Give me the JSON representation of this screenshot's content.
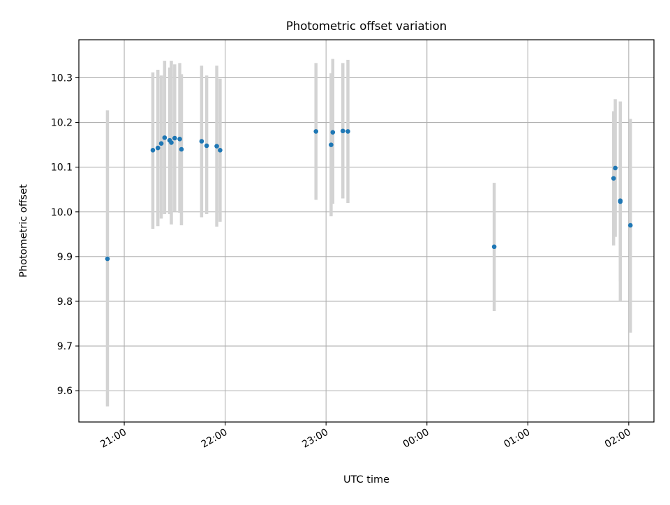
{
  "chart_data": {
    "type": "scatter",
    "title": "Photometric offset variation",
    "xlabel": "UTC time",
    "ylabel": "Photometric offset",
    "xlim": [
      "20:33",
      "02:15"
    ],
    "ylim": [
      9.53,
      10.385
    ],
    "x_ticks": [
      "21:00",
      "22:00",
      "23:00",
      "00:00",
      "01:00",
      "02:00"
    ],
    "y_ticks": [
      9.6,
      9.7,
      9.8,
      9.9,
      10.0,
      10.1,
      10.2,
      10.3
    ],
    "grid": true,
    "colors": {
      "marker": "#1f77b4",
      "errorbar": "#d3d3d3",
      "grid": "#b0b0b0"
    },
    "points": [
      {
        "x": "20:50",
        "y": 9.895,
        "lo": 9.565,
        "hi": 10.227
      },
      {
        "x": "21:17",
        "y": 10.138,
        "lo": 9.962,
        "hi": 10.312
      },
      {
        "x": "21:20",
        "y": 10.143,
        "lo": 9.968,
        "hi": 10.318
      },
      {
        "x": "21:22",
        "y": 10.153,
        "lo": 9.985,
        "hi": 10.305
      },
      {
        "x": "21:24",
        "y": 10.166,
        "lo": 9.995,
        "hi": 10.338
      },
      {
        "x": "21:27",
        "y": 10.16,
        "lo": 9.995,
        "hi": 10.323
      },
      {
        "x": "21:28",
        "y": 10.155,
        "lo": 9.972,
        "hi": 10.338
      },
      {
        "x": "21:30",
        "y": 10.165,
        "lo": 10.0,
        "hi": 10.33
      },
      {
        "x": "21:33",
        "y": 10.163,
        "lo": 9.998,
        "hi": 10.333
      },
      {
        "x": "21:34",
        "y": 10.14,
        "lo": 9.97,
        "hi": 10.308
      },
      {
        "x": "21:46",
        "y": 10.158,
        "lo": 9.988,
        "hi": 10.327
      },
      {
        "x": "21:49",
        "y": 10.148,
        "lo": 9.995,
        "hi": 10.305
      },
      {
        "x": "21:55",
        "y": 10.147,
        "lo": 9.967,
        "hi": 10.327
      },
      {
        "x": "21:57",
        "y": 10.138,
        "lo": 9.978,
        "hi": 10.298
      },
      {
        "x": "22:54",
        "y": 10.18,
        "lo": 10.027,
        "hi": 10.333
      },
      {
        "x": "23:03",
        "y": 10.15,
        "lo": 9.99,
        "hi": 10.31
      },
      {
        "x": "23:04",
        "y": 10.178,
        "lo": 10.018,
        "hi": 10.342
      },
      {
        "x": "23:10",
        "y": 10.181,
        "lo": 10.03,
        "hi": 10.333
      },
      {
        "x": "23:13",
        "y": 10.18,
        "lo": 10.02,
        "hi": 10.34
      },
      {
        "x": "00:40",
        "y": 9.922,
        "lo": 9.778,
        "hi": 10.065
      },
      {
        "x": "01:51",
        "y": 10.075,
        "lo": 9.925,
        "hi": 10.225
      },
      {
        "x": "01:52",
        "y": 10.098,
        "lo": 9.944,
        "hi": 10.252
      },
      {
        "x": "01:55",
        "y": 10.023,
        "lo": 9.8,
        "hi": 10.247
      },
      {
        "x": "01:55",
        "y": 10.025,
        "lo": 9.845,
        "hi": 10.205
      },
      {
        "x": "02:01",
        "y": 9.97,
        "lo": 9.73,
        "hi": 10.208
      }
    ]
  }
}
